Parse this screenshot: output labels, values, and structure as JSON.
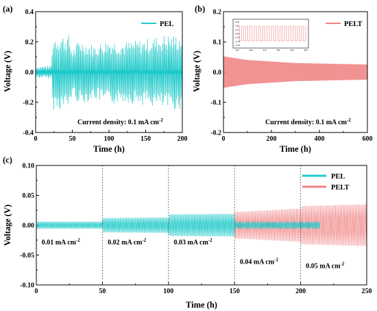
{
  "chart_data": [
    {
      "id": "a",
      "type": "line",
      "panel_label": "(a)",
      "xlabel": "Time (h)",
      "ylabel": "Voltage (V)",
      "xlim": [
        0,
        200
      ],
      "ylim": [
        -0.4,
        0.4
      ],
      "xticks": [
        0,
        50,
        100,
        150,
        200
      ],
      "yticks": [
        -0.4,
        -0.2,
        0.0,
        0.2,
        0.4
      ],
      "xtick_labels": [
        "0",
        "50",
        "100",
        "150",
        "200"
      ],
      "ytick_labels": [
        "-0.4",
        "-0.2",
        "0.0",
        "0.2",
        "0.4"
      ],
      "series": [
        {
          "name": "PEL",
          "color": "#1ec9c9",
          "envelope": [
            {
              "t": 0,
              "amp": 0.04
            },
            {
              "t": 22,
              "amp": 0.045
            },
            {
              "t": 23,
              "amp": 0.25
            },
            {
              "t": 45,
              "amp": 0.25
            },
            {
              "t": 50,
              "amp": 0.15
            },
            {
              "t": 60,
              "amp": 0.22
            },
            {
              "t": 80,
              "amp": 0.18
            },
            {
              "t": 100,
              "amp": 0.22
            },
            {
              "t": 120,
              "amp": 0.2
            },
            {
              "t": 150,
              "amp": 0.22
            },
            {
              "t": 175,
              "amp": 0.25
            },
            {
              "t": 200,
              "amp": 0.25
            }
          ]
        }
      ],
      "annotation": {
        "text": "Current density: 0.1 mA cm",
        "sup": "-2"
      },
      "legend": "top-right"
    },
    {
      "id": "b",
      "type": "line",
      "panel_label": "(b)",
      "xlabel": "Time (h)",
      "ylabel": "Voltage (V)",
      "xlim": [
        0,
        600
      ],
      "ylim": [
        -0.2,
        0.2
      ],
      "xticks": [
        0,
        200,
        400,
        600
      ],
      "yticks": [
        -0.2,
        -0.1,
        0.0,
        0.1,
        0.2
      ],
      "xtick_labels": [
        "0",
        "200",
        "400",
        "600"
      ],
      "ytick_labels": [
        "-0.2",
        "-0.1",
        "0.0",
        "0.1",
        "0.2"
      ],
      "series": [
        {
          "name": "PELT",
          "color": "#f08080",
          "envelope": [
            {
              "t": 0,
              "amp": 0.052
            },
            {
              "t": 100,
              "amp": 0.04
            },
            {
              "t": 300,
              "amp": 0.03
            },
            {
              "t": 600,
              "amp": 0.025
            }
          ]
        }
      ],
      "inset": {
        "xtick_labels": [
          "350",
          "360",
          "370",
          "380",
          "390",
          "400"
        ],
        "ytick_labels": [
          "0.03",
          "0.02",
          "0.01",
          "0.00",
          "-0.01",
          "-0.02",
          "-0.03"
        ],
        "cycles": 16
      },
      "annotation": {
        "text": "Current density: 0.1 mA cm",
        "sup": "-2"
      },
      "legend": "top-right"
    },
    {
      "id": "c",
      "type": "line",
      "panel_label": "(c)",
      "xlabel": "Time (h)",
      "ylabel": "Voltage (V)",
      "xlim": [
        0,
        250
      ],
      "ylim": [
        -0.1,
        0.1
      ],
      "xticks": [
        0,
        50,
        100,
        150,
        200,
        250
      ],
      "yticks": [
        -0.1,
        -0.05,
        0.0,
        0.05,
        0.1
      ],
      "xtick_labels": [
        "0",
        "50",
        "100",
        "150",
        "200",
        "250"
      ],
      "ytick_labels": [
        "-0.10",
        "-0.05",
        "0.00",
        "0.05",
        "0.10"
      ],
      "dividers": [
        50,
        100,
        150,
        200
      ],
      "segments": [
        {
          "label": "0.01 mA cm",
          "sup": "-2",
          "x": 4,
          "y": -0.032
        },
        {
          "label": "0.02 mA cm",
          "sup": "-2",
          "x": 54,
          "y": -0.032
        },
        {
          "label": "0.03 mA cm",
          "sup": "-2",
          "x": 104,
          "y": -0.032
        },
        {
          "label": "0.04 mA cm",
          "sup": "-2",
          "x": 154,
          "y": -0.065
        },
        {
          "label": "0.05 mA cm",
          "sup": "-2",
          "x": 204,
          "y": -0.072
        }
      ],
      "series": [
        {
          "name": "PEL",
          "color": "#1ec9c9",
          "t_end": 215,
          "envelope": [
            {
              "t": 0,
              "amp": 0.006
            },
            {
              "t": 50,
              "amp": 0.006
            },
            {
              "t": 50.5,
              "amp": 0.012
            },
            {
              "t": 100,
              "amp": 0.013
            },
            {
              "t": 100.5,
              "amp": 0.018
            },
            {
              "t": 150,
              "amp": 0.019
            },
            {
              "t": 150.5,
              "amp": 0.006
            },
            {
              "t": 215,
              "amp": 0.006
            }
          ]
        },
        {
          "name": "PELT",
          "color": "#f08080",
          "t_end": 250,
          "envelope": [
            {
              "t": 150,
              "amp": 0.022
            },
            {
              "t": 200,
              "amp": 0.028
            },
            {
              "t": 200.5,
              "amp": 0.032
            },
            {
              "t": 250,
              "amp": 0.035
            }
          ]
        }
      ],
      "legend": "top-right"
    }
  ]
}
